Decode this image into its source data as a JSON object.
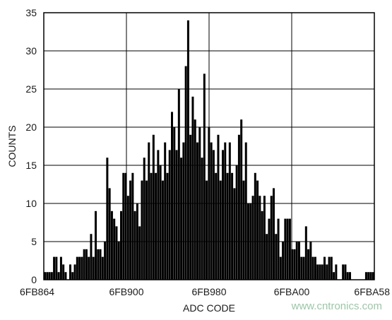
{
  "chart_data": {
    "type": "bar",
    "title": "",
    "xlabel": "ADC CODE",
    "ylabel": "COUNTS",
    "x_tick_labels": [
      "6FB864",
      "6FB900",
      "6FB980",
      "6FBA00",
      "6FBA58"
    ],
    "ylim": [
      0,
      35
    ],
    "y_ticks": [
      0,
      5,
      10,
      15,
      20,
      25,
      30,
      35
    ],
    "grid": true,
    "legend": "none",
    "bar_color": "#000000",
    "values": [
      1,
      1,
      1,
      1,
      3,
      3,
      1,
      3,
      2,
      1,
      0,
      2,
      1,
      2,
      3,
      3,
      3,
      4,
      4,
      3,
      6,
      3,
      9,
      4,
      4,
      3,
      5,
      16,
      12,
      9,
      8,
      7,
      5,
      9,
      14,
      14,
      11,
      13,
      14,
      9,
      10,
      7,
      13,
      16,
      13,
      18,
      14,
      19,
      14,
      17,
      15,
      13,
      18,
      14,
      17,
      22,
      20,
      17,
      25,
      16,
      18,
      28,
      34,
      19,
      24,
      21,
      18,
      20,
      16,
      27,
      13,
      20,
      18,
      17,
      14,
      19,
      13,
      17,
      18,
      14,
      18,
      14,
      12,
      15,
      19,
      21,
      13,
      18,
      10,
      10,
      11,
      14,
      13,
      11,
      9,
      11,
      6,
      8,
      11,
      12,
      6,
      8,
      3,
      5,
      8,
      8,
      8,
      4,
      4,
      5,
      5,
      3,
      3,
      7,
      4,
      5,
      3,
      3,
      2,
      2,
      2,
      3,
      2,
      3,
      3,
      1,
      2,
      0,
      0,
      2,
      2,
      1,
      1,
      0,
      0,
      0,
      0,
      0,
      0,
      1,
      1,
      1,
      1
    ]
  },
  "watermark": "www.cntronics.com"
}
